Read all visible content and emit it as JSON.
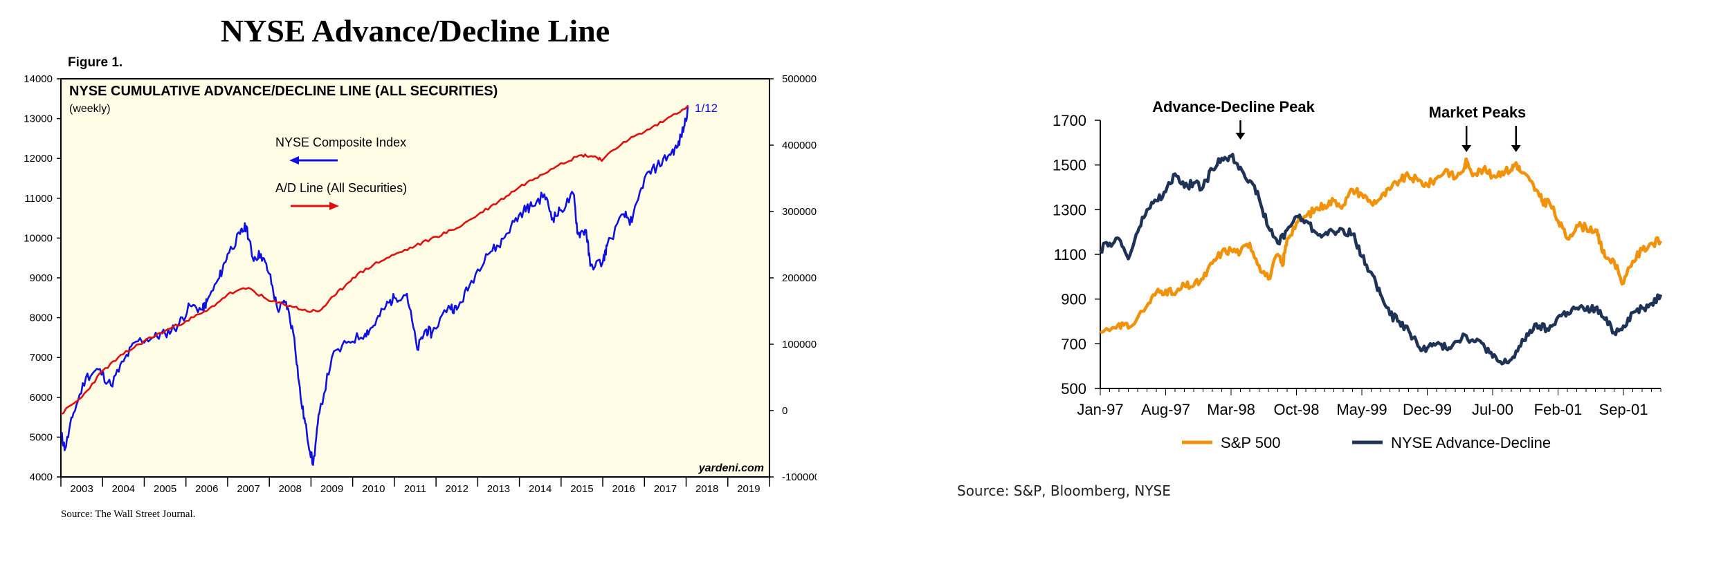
{
  "page": {
    "main_title": "NYSE Advance/Decline Line",
    "figure_label": "Figure 1.",
    "left_source": "Source: The Wall Street Journal.",
    "right_source": "Source: S&P, Bloomberg, NYSE"
  },
  "chart_data": [
    {
      "type": "line",
      "title": "NYSE CUMULATIVE ADVANCE/DECLINE LINE (ALL SECURITIES)",
      "subtitle": "(weekly)",
      "watermark": "yardeni.com",
      "end_label": "1/12",
      "background": "#fffde6",
      "grid": false,
      "legend_position": "center-left",
      "x_ticks": [
        "2003",
        "2004",
        "2005",
        "2006",
        "2007",
        "2008",
        "2009",
        "2010",
        "2011",
        "2012",
        "2013",
        "2014",
        "2015",
        "2016",
        "2017",
        "2018",
        "2019"
      ],
      "xlim": [
        2003.0,
        2020.0
      ],
      "y_left": {
        "ylim": [
          4000,
          14000
        ],
        "ticks": [
          "4000",
          "5000",
          "6000",
          "7000",
          "8000",
          "9000",
          "10000",
          "11000",
          "12000",
          "13000",
          "14000"
        ]
      },
      "y_right": {
        "ylim": [
          -100000,
          500000
        ],
        "ticks": [
          "-100000",
          "0",
          "100000",
          "200000",
          "300000",
          "400000",
          "500000"
        ]
      },
      "series": [
        {
          "name": "NYSE Composite Index",
          "axis": "left",
          "color": "#1010e0",
          "legend_arrow": "left",
          "x": [
            2003.0,
            2003.1,
            2003.3,
            2003.6,
            2003.9,
            2004.2,
            2004.5,
            2004.8,
            2005.2,
            2005.5,
            2005.8,
            2006.1,
            2006.4,
            2006.5,
            2006.8,
            2007.0,
            2007.3,
            2007.45,
            2007.6,
            2007.8,
            2008.0,
            2008.2,
            2008.4,
            2008.6,
            2008.75,
            2008.9,
            2009.05,
            2009.2,
            2009.5,
            2009.9,
            2010.3,
            2010.5,
            2010.8,
            2011.0,
            2011.3,
            2011.55,
            2011.75,
            2011.9,
            2012.3,
            2012.5,
            2012.8,
            2013.2,
            2013.5,
            2013.8,
            2014.1,
            2014.3,
            2014.6,
            2014.8,
            2015.0,
            2015.3,
            2015.4,
            2015.6,
            2015.7,
            2016.0,
            2016.1,
            2016.5,
            2016.7,
            2017.0,
            2017.3,
            2017.6,
            2017.8,
            2017.95,
            2018.05
          ],
          "y": [
            5100,
            4700,
            5600,
            6500,
            6700,
            6300,
            6900,
            7400,
            7500,
            7600,
            7800,
            8300,
            8200,
            8400,
            9000,
            9600,
            10100,
            10300,
            9500,
            9600,
            9100,
            8200,
            8400,
            7500,
            6000,
            5100,
            4300,
            5600,
            7000,
            7400,
            7600,
            7800,
            8300,
            8500,
            8600,
            7200,
            7700,
            7600,
            8300,
            8200,
            8800,
            9600,
            9800,
            10300,
            10700,
            10800,
            11100,
            10500,
            10700,
            11100,
            10100,
            10200,
            9300,
            9400,
            9800,
            10600,
            10400,
            11500,
            11800,
            12100,
            12300,
            12800,
            13300
          ]
        },
        {
          "name": "A/D Line (All Securities)",
          "axis": "right",
          "color": "#e01010",
          "legend_arrow": "right",
          "x": [
            2003.0,
            2003.5,
            2004.0,
            2004.5,
            2005.0,
            2005.5,
            2006.0,
            2006.5,
            2007.0,
            2007.5,
            2008.0,
            2008.5,
            2008.9,
            2009.2,
            2009.6,
            2010.0,
            2010.5,
            2011.0,
            2011.5,
            2012.0,
            2012.5,
            2013.0,
            2013.5,
            2014.0,
            2014.5,
            2015.0,
            2015.5,
            2015.8,
            2016.0,
            2016.5,
            2017.0,
            2017.5,
            2018.05
          ],
          "y": [
            -5000,
            20000,
            60000,
            85000,
            105000,
            120000,
            135000,
            150000,
            175000,
            185000,
            165000,
            158000,
            150000,
            150000,
            175000,
            200000,
            220000,
            235000,
            248000,
            262000,
            275000,
            295000,
            315000,
            337000,
            355000,
            373000,
            385000,
            383000,
            378000,
            405000,
            420000,
            438000,
            460000
          ]
        }
      ]
    },
    {
      "type": "line",
      "title": "",
      "x_ticks": [
        "Jan-97",
        "Aug-97",
        "Mar-98",
        "Oct-98",
        "May-99",
        "Dec-99",
        "Jul-00",
        "Feb-01",
        "Sep-01"
      ],
      "xlim": [
        0,
        60
      ],
      "ylim": [
        500,
        1700
      ],
      "y_ticks": [
        "500",
        "700",
        "900",
        "1100",
        "1300",
        "1500",
        "1700"
      ],
      "legend_position": "bottom",
      "annotations": [
        {
          "text": "Advance-Decline Peak",
          "x": 15
        },
        {
          "text": "Market Peaks",
          "x": 39.2
        },
        {
          "text": "",
          "x": 44.5
        }
      ],
      "series": [
        {
          "name": "S&P 500",
          "color": "#f0920a",
          "x": [
            0,
            2,
            3,
            5,
            6,
            7,
            8,
            9,
            10,
            11,
            12,
            13,
            14,
            15,
            16,
            17,
            18,
            19,
            19.5,
            20,
            21,
            22,
            23,
            24,
            25,
            26,
            27,
            28,
            29,
            30,
            31,
            32,
            33,
            34,
            35,
            36,
            37,
            38,
            39,
            39.2,
            40,
            41,
            42,
            43,
            44,
            44.5,
            45,
            46,
            47,
            47.5,
            48,
            49,
            50,
            51,
            52,
            53,
            53.5,
            54,
            55,
            56,
            57,
            58,
            59,
            60
          ],
          "y": [
            750,
            790,
            770,
            870,
            930,
            940,
            920,
            960,
            960,
            990,
            1060,
            1110,
            1120,
            1110,
            1150,
            1050,
            990,
            1100,
            1050,
            1170,
            1240,
            1270,
            1300,
            1320,
            1340,
            1320,
            1390,
            1370,
            1330,
            1350,
            1390,
            1430,
            1450,
            1430,
            1410,
            1440,
            1480,
            1440,
            1490,
            1520,
            1460,
            1480,
            1450,
            1470,
            1480,
            1510,
            1470,
            1430,
            1360,
            1330,
            1340,
            1250,
            1170,
            1230,
            1220,
            1210,
            1150,
            1090,
            1070,
            970,
            1070,
            1120,
            1150,
            1160
          ]
        },
        {
          "name": "NYSE Advance-Decline",
          "color": "#1f3356",
          "x": [
            0,
            1,
            2,
            3,
            4,
            5,
            6,
            7,
            8,
            9,
            10,
            11,
            12,
            13,
            14,
            15,
            16,
            17,
            18,
            19,
            20,
            21,
            22,
            23,
            24,
            25,
            26,
            27,
            28,
            29,
            30,
            31,
            32,
            33,
            34,
            35,
            36,
            37,
            38,
            39,
            40,
            41,
            42,
            43,
            44,
            45,
            46,
            47,
            48,
            49,
            50,
            51,
            52,
            53,
            54,
            55,
            56,
            57,
            58,
            59,
            60
          ],
          "y": [
            1120,
            1150,
            1170,
            1080,
            1200,
            1300,
            1340,
            1380,
            1460,
            1400,
            1420,
            1400,
            1480,
            1530,
            1540,
            1490,
            1430,
            1350,
            1220,
            1150,
            1210,
            1270,
            1250,
            1200,
            1190,
            1200,
            1210,
            1190,
            1090,
            1020,
            920,
            830,
            800,
            760,
            690,
            680,
            700,
            680,
            710,
            740,
            710,
            700,
            640,
            610,
            630,
            690,
            760,
            780,
            760,
            820,
            840,
            860,
            850,
            860,
            810,
            750,
            780,
            840,
            860,
            880,
            920
          ]
        }
      ]
    }
  ]
}
